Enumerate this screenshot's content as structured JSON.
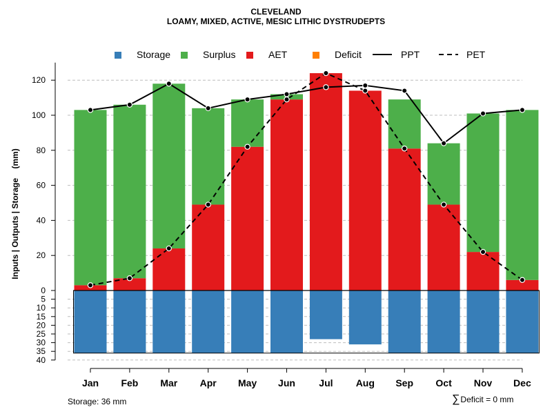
{
  "chart_data": {
    "type": "bar",
    "title": "CLEVELAND",
    "subtitle": "LOAMY, MIXED, ACTIVE, MESIC LITHIC DYSTRUDEPTS",
    "ylabel": "Inputs | Outputs | Storage    (mm)",
    "categories": [
      "Jan",
      "Feb",
      "Mar",
      "Apr",
      "May",
      "Jun",
      "Jul",
      "Aug",
      "Sep",
      "Oct",
      "Nov",
      "Dec"
    ],
    "ylim_top": [
      0,
      130
    ],
    "ylim_bottom": [
      0,
      40
    ],
    "yticks_top": [
      0,
      20,
      40,
      60,
      80,
      100,
      120
    ],
    "yticks_bottom": [
      5,
      10,
      15,
      20,
      25,
      30,
      35,
      40
    ],
    "series": [
      {
        "name": "AET",
        "color": "#e31a1c",
        "values": [
          3,
          7,
          24,
          49,
          82,
          109,
          124,
          114,
          81,
          49,
          22,
          6
        ]
      },
      {
        "name": "Surplus",
        "color": "#4daf4a",
        "values": [
          100,
          99,
          94,
          55,
          27,
          3,
          0,
          0,
          28,
          35,
          79,
          97
        ]
      },
      {
        "name": "Deficit",
        "color": "#ff7f00",
        "values": [
          0,
          0,
          0,
          0,
          0,
          0,
          0,
          0,
          0,
          0,
          0,
          0
        ]
      },
      {
        "name": "Storage",
        "color": "#377eb8",
        "values": [
          36,
          36,
          36,
          36,
          36,
          36,
          28,
          31,
          36,
          36,
          36,
          36
        ]
      }
    ],
    "lines": [
      {
        "name": "PPT",
        "style": "solid",
        "values": [
          103,
          106,
          118,
          104,
          109,
          112,
          116,
          117,
          114,
          84,
          101,
          103
        ]
      },
      {
        "name": "PET",
        "style": "dashed",
        "values": [
          3,
          7,
          24,
          49,
          82,
          109,
          124,
          114,
          81,
          49,
          22,
          6
        ]
      }
    ],
    "storage_capacity": 36
  },
  "legend": {
    "storage": "Storage",
    "surplus": "Surplus",
    "aet": "AET",
    "deficit": "Deficit",
    "ppt": "PPT",
    "pet": "PET"
  },
  "footer": {
    "storage_note": "Storage: 36 mm",
    "deficit_note": "Deficit = 0 mm"
  }
}
